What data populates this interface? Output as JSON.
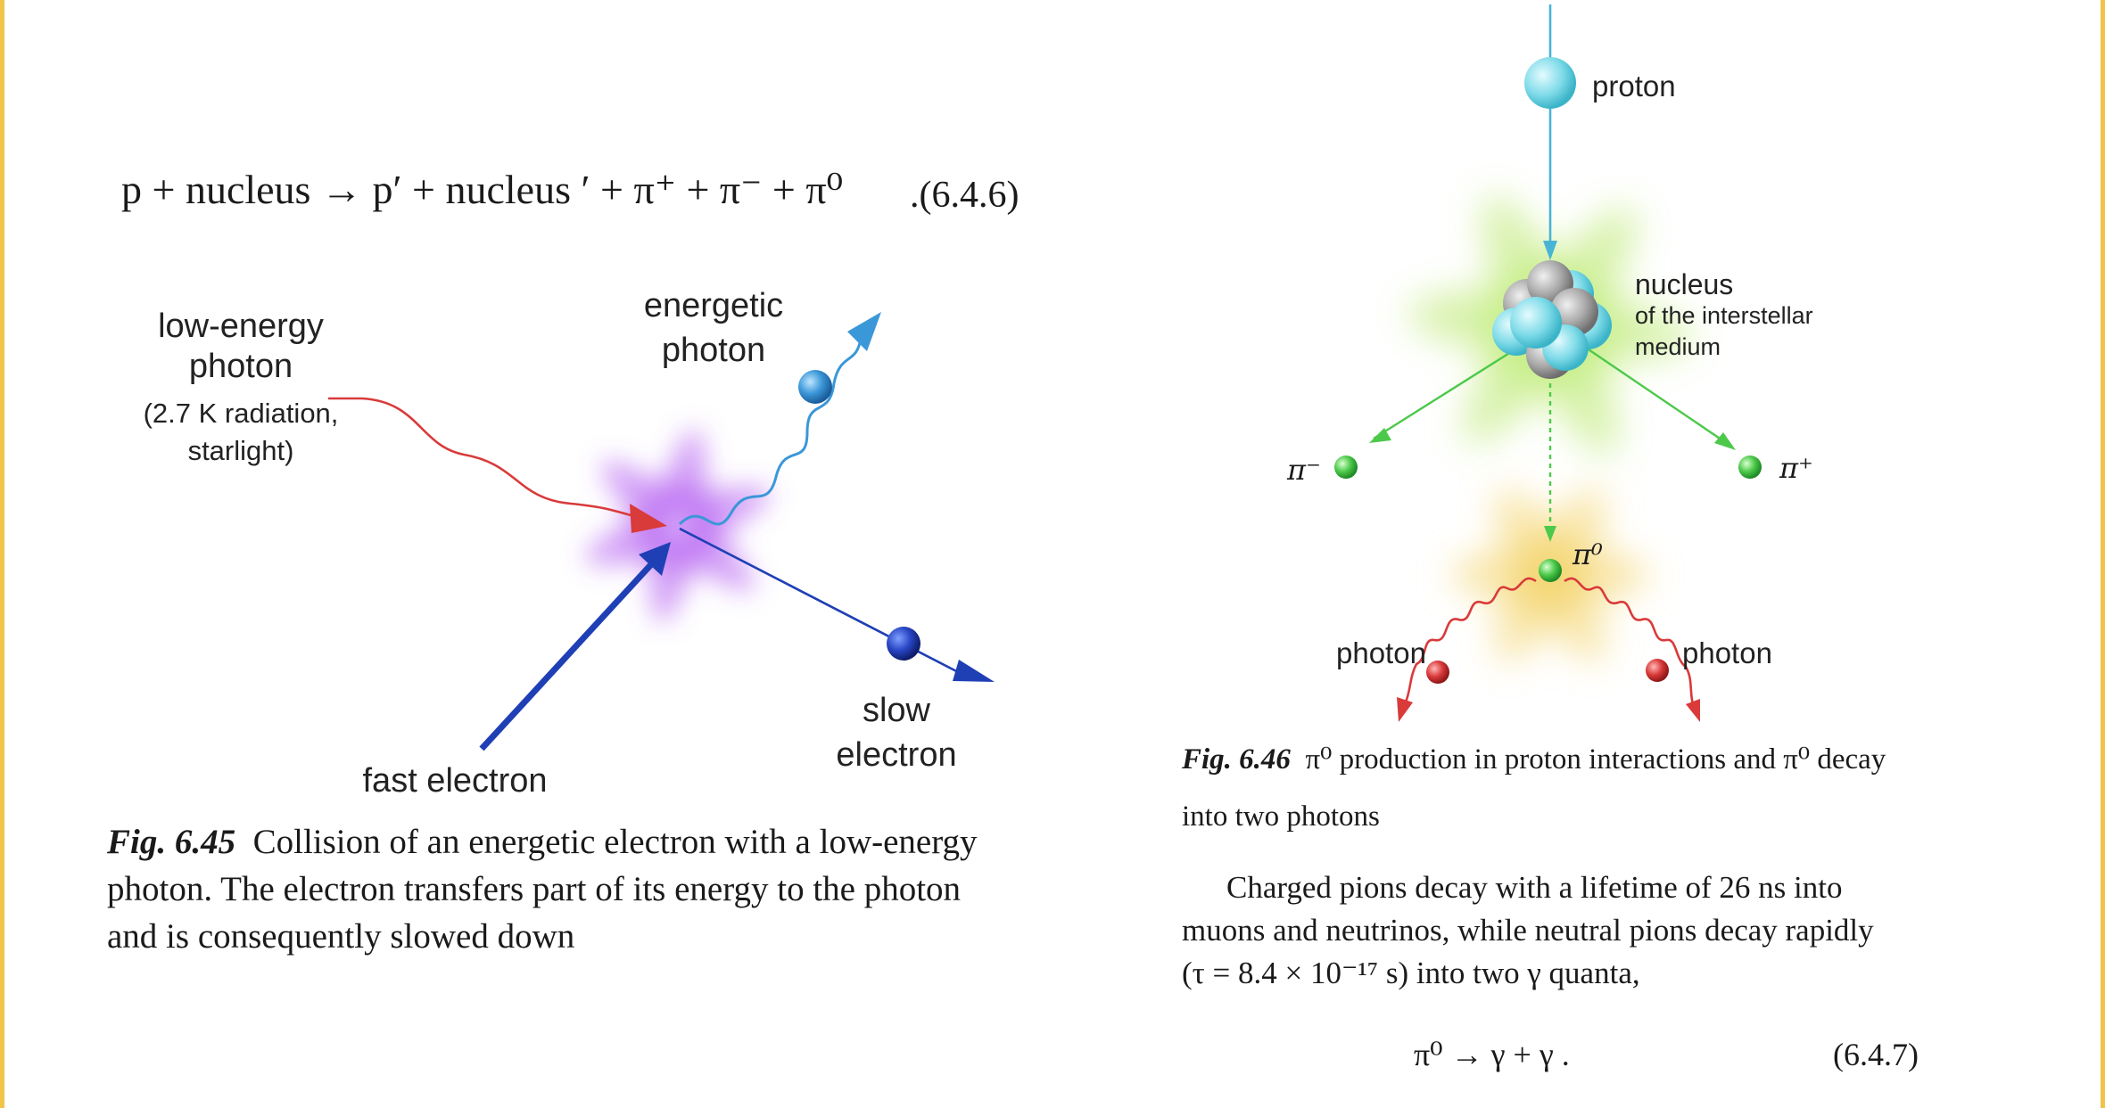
{
  "eq646": {
    "text": "p + nucleus → p′ + nucleus ′ + π⁺ + π⁻ + π⁰",
    "number": ".(6.4.6)"
  },
  "fig645": {
    "labels": {
      "low_energy_photon_1": "low-energy",
      "low_energy_photon_2": "photon",
      "low_energy_photon_3": "(2.7 K radiation,",
      "low_energy_photon_4": "starlight)",
      "energetic_photon_1": "energetic",
      "energetic_photon_2": "photon",
      "slow_electron_1": "slow",
      "slow_electron_2": "electron",
      "fast_electron": "fast electron"
    },
    "caption_label": "Fig. 6.45",
    "caption_line1": "Collision of an energetic electron with a low-energy",
    "caption_line2": "photon. The electron transfers part of its energy to the photon",
    "caption_line3": "and is consequently slowed down"
  },
  "fig646": {
    "labels": {
      "proton": "proton",
      "nucleus_1": "nucleus",
      "nucleus_2": "of the interstellar",
      "nucleus_3": "medium",
      "pi_minus": "π⁻",
      "pi_plus": "π⁺",
      "pi_zero": "π⁰",
      "photon_left": "photon",
      "photon_right": "photon"
    },
    "caption_label": "Fig. 6.46",
    "caption_line1": "π⁰ production in proton interactions and π⁰ decay",
    "caption_line2": "into two photons"
  },
  "body_text": {
    "line1": "Charged pions  decay with a lifetime of 26 ns into",
    "line2": "muons and neutrinos, while neutral pions decay rapidly",
    "line3": "(τ = 8.4 × 10⁻¹⁷ s) into two γ quanta,"
  },
  "eq647": {
    "text": "π⁰ → γ + γ   .",
    "number": "(6.4.7)"
  },
  "colors": {
    "frame_accent": "#f0c44a",
    "electron_blue": "#1f3fb5",
    "photon_red": "#d93a3a",
    "burst_violet": "#b35cf0",
    "burst_green": "#b8e86a",
    "burst_yellow": "#f3d46a",
    "pion_green": "#4cc94a",
    "proton_cyan": "#7fdbe8"
  }
}
